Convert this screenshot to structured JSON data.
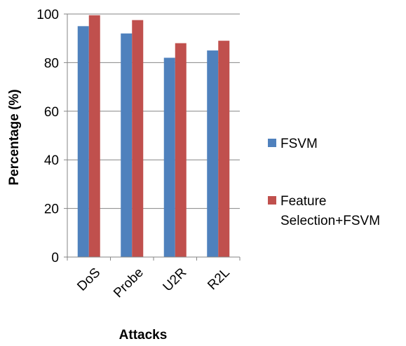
{
  "chart_data": {
    "type": "bar",
    "categories": [
      "DoS",
      "Probe",
      "U2R",
      "R2L"
    ],
    "series": [
      {
        "name": "FSVM",
        "values": [
          95,
          92,
          82,
          85
        ],
        "color": "#4F81BD"
      },
      {
        "name": "Feature Selection+FSVM",
        "values": [
          99.5,
          97.5,
          88,
          89
        ],
        "color": "#C0504D"
      }
    ],
    "title": "",
    "xlabel": "Attacks",
    "ylabel": "Percentage (%)",
    "ylim": [
      0,
      100
    ],
    "yticks": [
      0,
      20,
      40,
      60,
      80,
      100
    ],
    "grid": true,
    "legend_position": "right"
  },
  "legend": {
    "fsvm_label": "FSVM",
    "fs_fsvm_label_line1": "Feature",
    "fs_fsvm_label_line2": "Selection+FSVM"
  }
}
